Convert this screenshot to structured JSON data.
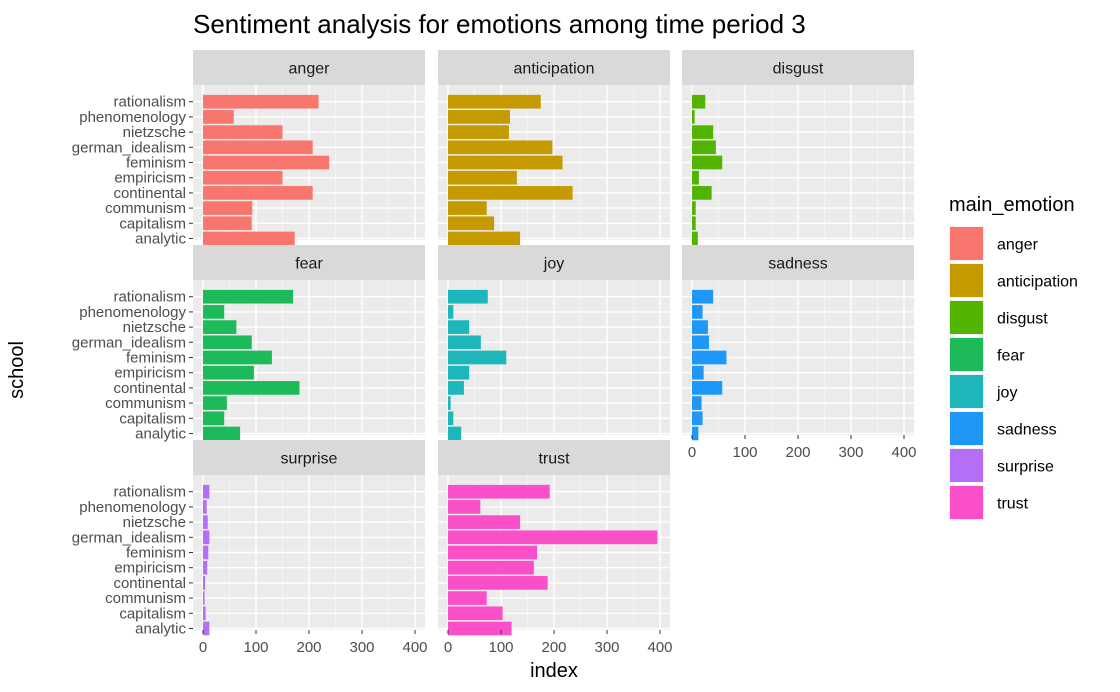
{
  "chart_data": {
    "type": "bar",
    "orientation": "horizontal",
    "faceted": true,
    "title": "Sentiment analysis for emotions among time period 3",
    "xlabel": "index",
    "ylabel": "school",
    "xlim": [
      0,
      400
    ],
    "x_ticks": [
      "0",
      "100",
      "200",
      "300",
      "400"
    ],
    "grid": true,
    "categories": [
      "rationalism",
      "phenomenology",
      "nietzsche",
      "german_idealism",
      "feminism",
      "empiricism",
      "continental",
      "communism",
      "capitalism",
      "analytic"
    ],
    "series": [
      {
        "name": "anger",
        "color": "#F8766D",
        "values": [
          218,
          58,
          150,
          207,
          238,
          150,
          207,
          93,
          92,
          173
        ]
      },
      {
        "name": "anticipation",
        "color": "#C49A00",
        "values": [
          175,
          117,
          115,
          197,
          216,
          130,
          235,
          73,
          87,
          136
        ]
      },
      {
        "name": "disgust",
        "color": "#53B400",
        "values": [
          25,
          5,
          40,
          45,
          57,
          13,
          37,
          7,
          7,
          11
        ]
      },
      {
        "name": "fear",
        "color": "#00C094",
        "values": [
          170,
          40,
          63,
          92,
          130,
          96,
          182,
          45,
          40,
          70
        ]
      },
      {
        "name": "joy",
        "color": "#00B6EB",
        "values": [
          75,
          10,
          40,
          62,
          110,
          40,
          30,
          5,
          10,
          25
        ]
      },
      {
        "name": "sadness",
        "color": "#06A4FF",
        "values": [
          40,
          20,
          30,
          32,
          65,
          22,
          57,
          18,
          20,
          12
        ]
      },
      {
        "name": "surprise",
        "color": "#A58AFF",
        "values": [
          12,
          7,
          9,
          12,
          10,
          8,
          4,
          3,
          5,
          12
        ]
      },
      {
        "name": "trust",
        "color": "#FB61D7",
        "values": [
          192,
          61,
          136,
          395,
          168,
          162,
          188,
          73,
          103,
          120
        ]
      }
    ],
    "facet_colors": {
      "anger": "#F8766D",
      "anticipation": "#C49A00",
      "disgust": "#53B400",
      "fear": "#1DBA5A",
      "joy": "#1DB7BB",
      "sadness": "#1E98F8",
      "surprise": "#B56EF8",
      "trust": "#FB4FC9"
    },
    "legend": {
      "title": "main_emotion",
      "position": "right",
      "entries": [
        "anger",
        "anticipation",
        "disgust",
        "fear",
        "joy",
        "sadness",
        "surprise",
        "trust"
      ]
    }
  }
}
